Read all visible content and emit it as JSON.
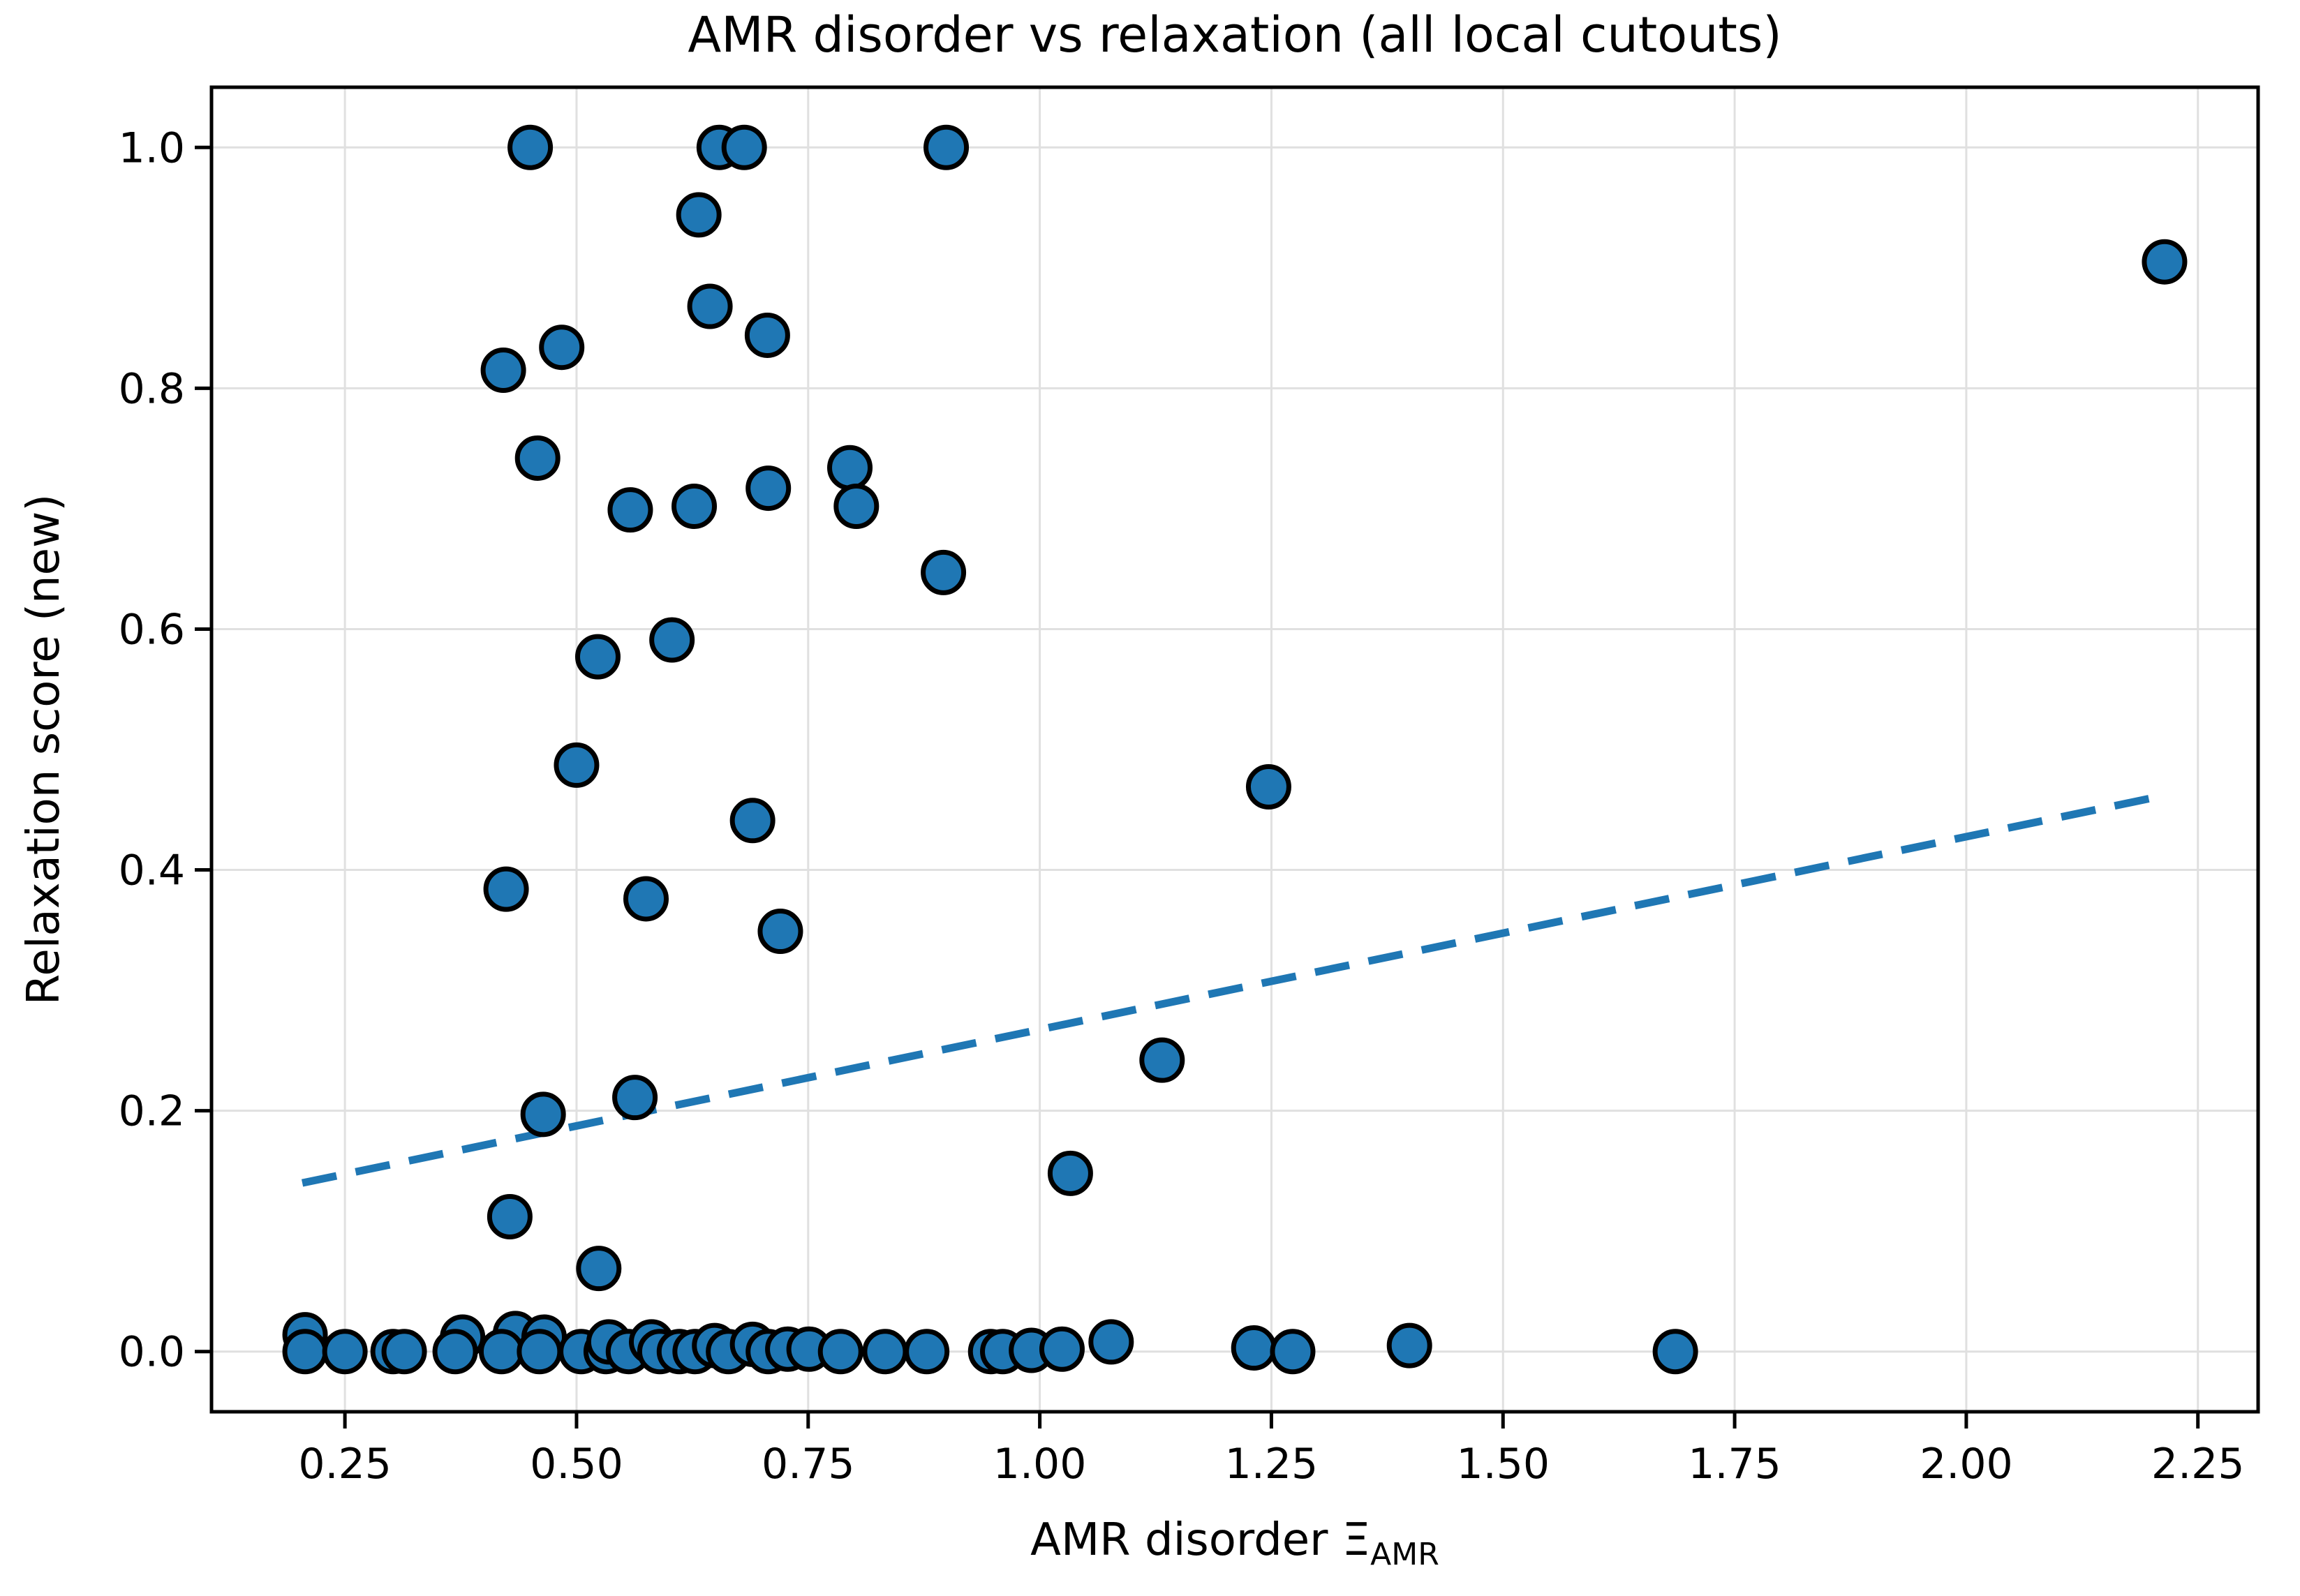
{
  "figure": {
    "background": "#ffffff"
  },
  "chart_data": {
    "type": "scatter",
    "title": "AMR disorder vs relaxation (all local cutouts)",
    "xlabel": {
      "main": "AMR disorder Ξ",
      "subscript": "AMR"
    },
    "ylabel": "Relaxation score (new)",
    "xlim": [
      0.106,
      2.315
    ],
    "ylim": [
      -0.05,
      1.05
    ],
    "grid": true,
    "legend": "none",
    "x_ticks": [
      0.25,
      0.5,
      0.75,
      1.0,
      1.25,
      1.5,
      1.75,
      2.0,
      2.25
    ],
    "x_tick_labels": [
      "0.25",
      "0.50",
      "0.75",
      "1.00",
      "1.25",
      "1.50",
      "1.75",
      "2.00",
      "2.25"
    ],
    "y_ticks": [
      0.0,
      0.2,
      0.4,
      0.6,
      0.8,
      1.0
    ],
    "y_tick_labels": [
      "0.0",
      "0.2",
      "0.4",
      "0.6",
      "0.8",
      "1.0"
    ],
    "series": [
      {
        "name": "local cutouts",
        "marker": "circle",
        "marker_fill": "#1f77b4",
        "marker_edge": "#000000",
        "points": [
          [
            0.45,
            1.0
          ],
          [
            0.654,
            1.0
          ],
          [
            0.681,
            1.0
          ],
          [
            0.899,
            1.0
          ],
          [
            0.632,
            0.944
          ],
          [
            2.214,
            0.905
          ],
          [
            0.644,
            0.868
          ],
          [
            0.706,
            0.844
          ],
          [
            0.484,
            0.834
          ],
          [
            0.421,
            0.815
          ],
          [
            0.458,
            0.742
          ],
          [
            0.795,
            0.734
          ],
          [
            0.707,
            0.717
          ],
          [
            0.627,
            0.702
          ],
          [
            0.802,
            0.702
          ],
          [
            0.558,
            0.699
          ],
          [
            0.896,
            0.647
          ],
          [
            0.603,
            0.591
          ],
          [
            0.523,
            0.577
          ],
          [
            0.5,
            0.487
          ],
          [
            1.247,
            0.469
          ],
          [
            0.69,
            0.441
          ],
          [
            0.424,
            0.384
          ],
          [
            0.575,
            0.376
          ],
          [
            0.72,
            0.349
          ],
          [
            1.132,
            0.242
          ],
          [
            0.563,
            0.211
          ],
          [
            0.464,
            0.197
          ],
          [
            1.033,
            0.148
          ],
          [
            0.428,
            0.112
          ],
          [
            0.524,
            0.069
          ],
          [
            0.207,
            0.014
          ],
          [
            0.207,
            0.0
          ],
          [
            0.25,
            0.0
          ],
          [
            0.302,
            0.0
          ],
          [
            0.314,
            0.0
          ],
          [
            0.377,
            0.012
          ],
          [
            0.369,
            0.0
          ],
          [
            0.434,
            0.015
          ],
          [
            0.419,
            0.0
          ],
          [
            0.465,
            0.012
          ],
          [
            0.46,
            0.0
          ],
          [
            0.505,
            0.0
          ],
          [
            0.532,
            0.0
          ],
          [
            0.535,
            0.008
          ],
          [
            0.556,
            0.0
          ],
          [
            0.581,
            0.008
          ],
          [
            0.59,
            0.0
          ],
          [
            0.611,
            0.0
          ],
          [
            0.628,
            0.0
          ],
          [
            0.649,
            0.005
          ],
          [
            0.664,
            0.0
          ],
          [
            0.69,
            0.006
          ],
          [
            0.707,
            0.0
          ],
          [
            0.728,
            0.002
          ],
          [
            0.751,
            0.002
          ],
          [
            0.785,
            0.0
          ],
          [
            0.833,
            0.0
          ],
          [
            0.878,
            0.0
          ],
          [
            0.947,
            0.0
          ],
          [
            0.96,
            0.0
          ],
          [
            0.991,
            0.001
          ],
          [
            1.024,
            0.002
          ],
          [
            1.077,
            0.008
          ],
          [
            1.231,
            0.003
          ],
          [
            1.273,
            0.0
          ],
          [
            1.399,
            0.005
          ],
          [
            1.686,
            0.0
          ]
        ]
      }
    ],
    "trendline": {
      "type": "linear-fit",
      "style": "dashed",
      "color": "#1f77b4",
      "x1": 0.204,
      "y1": 0.14,
      "x2": 2.215,
      "y2": 0.462
    }
  },
  "style_colors": {
    "grid": "#e0e0e0",
    "spine": "#000000",
    "tick": "#000000",
    "text": "#000000",
    "marker_fill": "#1f77b4",
    "marker_edge": "#000000",
    "trend": "#1f77b4"
  }
}
